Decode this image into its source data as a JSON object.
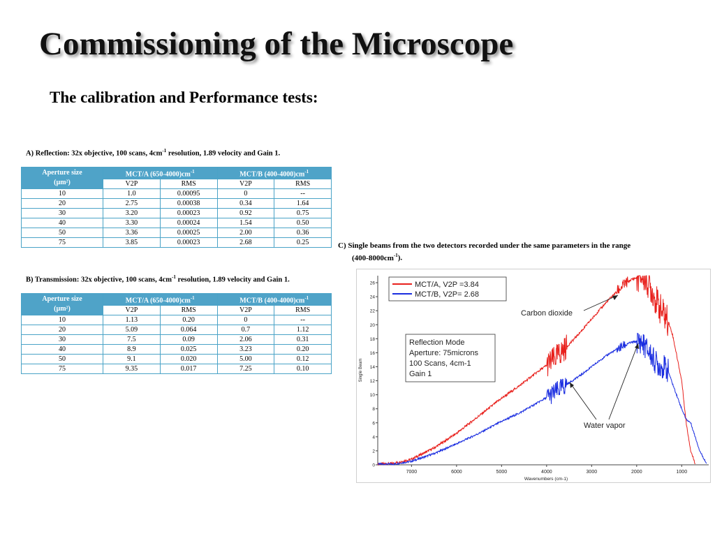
{
  "slide": {
    "title": "Commissioning of the Microscope",
    "subtitle": "The calibration and Performance tests:"
  },
  "table_a": {
    "caption_pre": "A)  Reflection: 32x objective, 100 scans, 4cm",
    "caption_sup": "-1",
    "caption_post": " resolution, 1.89 velocity and Gain 1.",
    "col_aperture_line1": "Aperture size",
    "col_aperture_line2": "(µm²)",
    "col_a": "MCT/A (650-4000)cm",
    "col_b": "MCT/B (400-4000)cm",
    "col_sup": "-1",
    "sub": [
      "V2P",
      "RMS",
      "V2P",
      "RMS"
    ],
    "rows": [
      [
        "10",
        "1.0",
        "0.00095",
        "0",
        "--"
      ],
      [
        "20",
        "2.75",
        "0.00038",
        "0.34",
        "1.64"
      ],
      [
        "30",
        "3.20",
        "0.00023",
        "0.92",
        "0.75"
      ],
      [
        "40",
        "3.30",
        "0.00024",
        "1.54",
        "0.50"
      ],
      [
        "50",
        "3.36",
        "0.00025",
        "2.00",
        "0.36"
      ],
      [
        "75",
        "3.85",
        "0.00023",
        "2.68",
        "0.25"
      ]
    ]
  },
  "table_b": {
    "caption": "B)  Transmission: 32x objective, 100 scans, 4cm",
    "caption_sup": "-1",
    "caption_post": " resolution, 1.89 velocity and Gain 1.",
    "col_aperture_line1": "Aperture size",
    "col_aperture_line2": "(µm²)",
    "col_a": "MCT/A (650-4000)cm",
    "col_b": "MCT/B (400-4000)cm",
    "col_sup": "-1",
    "sub": [
      "V2P",
      "RMS",
      "V2P",
      "RMS"
    ],
    "rows": [
      [
        "10",
        "1.13",
        "0.20",
        "0",
        "--"
      ],
      [
        "20",
        "5.09",
        "0.064",
        "0.7",
        "1.12"
      ],
      [
        "30",
        "7.5",
        "0.09",
        "2.06",
        "0.31"
      ],
      [
        "40",
        "8.9",
        "0.025",
        "3.23",
        "0.20"
      ],
      [
        "50",
        "9.1",
        "0.020",
        "5.00",
        "0.12"
      ],
      [
        "75",
        "9.35",
        "0.017",
        "7.25",
        "0.10"
      ]
    ]
  },
  "chart_caption": {
    "pre": "C)  Single beams from the two detectors recorded under the same parameters in the range",
    "line2": "(400-8000cm",
    "sup": "-1",
    "post": ")."
  },
  "chart_data": {
    "type": "line",
    "xlabel": "Wavenumbers (cm-1)",
    "ylabel": "Single Beam",
    "xlim": [
      7750,
      400
    ],
    "ylim": [
      0,
      27
    ],
    "x_ticks": [
      7000,
      6000,
      5000,
      4000,
      3000,
      2000,
      1000
    ],
    "y_ticks": [
      0,
      2,
      4,
      6,
      8,
      10,
      12,
      14,
      16,
      18,
      20,
      22,
      24,
      26
    ],
    "colors": {
      "red": "#e8201c",
      "blue": "#1a2de0"
    },
    "series": [
      {
        "name": "MCT/A, V2P =3.84",
        "color": "#e8201c",
        "x": [
          7750,
          7400,
          7000,
          6500,
          6000,
          5500,
          5000,
          4600,
          4300,
          4000,
          3800,
          3500,
          3200,
          3000,
          2800,
          2600,
          2400,
          2300,
          2200,
          2100,
          2000,
          1900,
          1800,
          1700,
          1600,
          1500,
          1400,
          1300,
          1200,
          1000,
          900,
          800,
          700
        ],
        "y": [
          0.1,
          0.2,
          0.8,
          2.4,
          4.5,
          7.0,
          9.5,
          11.3,
          12.8,
          14.2,
          15.3,
          17.2,
          19.3,
          20.8,
          22.3,
          23.7,
          25.0,
          25.6,
          26.1,
          26.5,
          26.7,
          26.9,
          26.5,
          25.5,
          24.0,
          22.5,
          21.5,
          20.5,
          18.5,
          12.0,
          6.0,
          2.0,
          0.2
        ]
      },
      {
        "name": "MCT/B, V2P= 2.68",
        "color": "#1a2de0",
        "x": [
          7750,
          7400,
          7000,
          6500,
          6000,
          5500,
          5000,
          4600,
          4300,
          4000,
          3800,
          3500,
          3200,
          3000,
          2800,
          2600,
          2400,
          2300,
          2200,
          2100,
          2000,
          1900,
          1800,
          1700,
          1600,
          1500,
          1400,
          1300,
          1200,
          1000,
          900,
          800,
          700,
          600,
          450
        ],
        "y": [
          0.1,
          0.1,
          0.5,
          1.6,
          3.0,
          4.5,
          6.2,
          7.4,
          8.5,
          9.6,
          10.4,
          11.7,
          13.0,
          14.0,
          15.0,
          15.9,
          16.6,
          17.0,
          17.3,
          17.5,
          17.6,
          17.5,
          16.8,
          15.8,
          14.8,
          14.2,
          14.0,
          13.4,
          11.5,
          8.0,
          6.5,
          6.0,
          4.0,
          2.0,
          0.2
        ]
      }
    ],
    "legend": [
      "MCT/A, V2P =3.84",
      "MCT/B, V2P= 2.68"
    ],
    "legend_position": "top-left",
    "info_box": [
      "Reflection Mode",
      "Aperture: 75microns",
      "100 Scans, 4cm-1",
      "Gain 1"
    ],
    "annotations": [
      "Carbon dioxide",
      "Water vapor"
    ]
  }
}
